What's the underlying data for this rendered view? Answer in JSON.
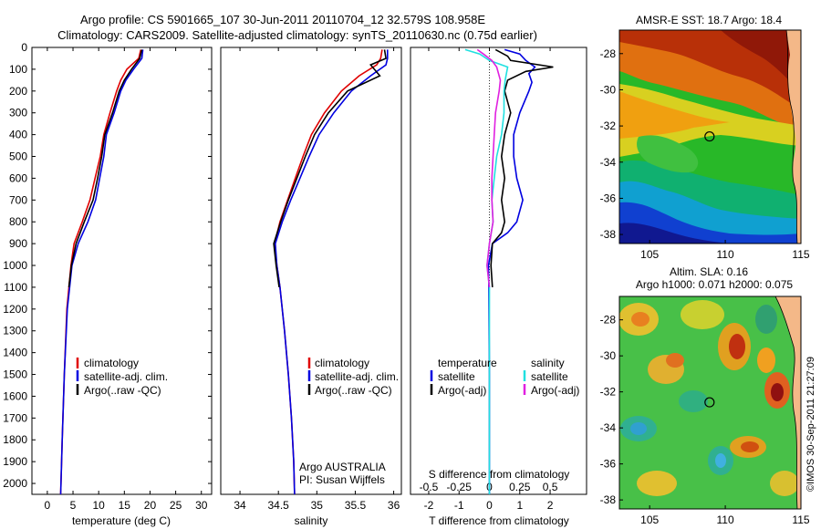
{
  "figure": {
    "title_line1": "Argo profile: CS 5901665_107 30-Jun-2011 20110704_12 32.579S 108.958E",
    "title_line2": "Climatology: CARS2009. Satellite-adjusted climatology: synTS_20110630.nc (0.75d earlier)",
    "side_stamp": "©IMOS 30-Sep-2011 21:27:09"
  },
  "colors": {
    "climatology": "#e00000",
    "satellite": "#0000e0",
    "argo": "#000000",
    "s_satellite": "#20e0e0",
    "s_argo": "#e020e0"
  },
  "chart_data": [
    {
      "type": "line",
      "xlabel": "temperature (deg C)",
      "ylabel": "",
      "xlim": [
        -3,
        32
      ],
      "ylim": [
        2050,
        0
      ],
      "xticks": [
        "0",
        "5",
        "10",
        "15",
        "20",
        "25",
        "30"
      ],
      "yticks": [
        "0",
        "100",
        "200",
        "300",
        "400",
        "500",
        "600",
        "700",
        "800",
        "900",
        "1000",
        "1100",
        "1200",
        "1300",
        "1400",
        "1500",
        "1600",
        "1700",
        "1800",
        "1900",
        "2000"
      ],
      "legend": [
        "climatology",
        "satellite-adj. clim.",
        "Argo(..raw -QC)"
      ],
      "series": [
        {
          "name": "climatology",
          "color_key": "climatology",
          "depth": [
            10,
            50,
            100,
            150,
            200,
            300,
            400,
            500,
            600,
            700,
            800,
            900,
            1000,
            1200,
            1500,
            1800,
            2050
          ],
          "values": [
            18.2,
            17.8,
            15.5,
            14.3,
            13.5,
            12.2,
            11.0,
            10.3,
            9.3,
            8.3,
            6.8,
            5.2,
            4.6,
            3.8,
            3.3,
            2.9,
            2.6
          ]
        },
        {
          "name": "satellite-adj. clim.",
          "color_key": "satellite",
          "depth": [
            10,
            50,
            100,
            150,
            200,
            300,
            400,
            500,
            600,
            700,
            800,
            900,
            1000,
            1200,
            1500,
            1800,
            2050
          ],
          "values": [
            18.6,
            18.4,
            16.8,
            15.3,
            14.3,
            13.0,
            11.5,
            11.0,
            10.2,
            9.4,
            7.9,
            6.0,
            4.8,
            3.9,
            3.3,
            2.9,
            2.6
          ]
        },
        {
          "name": "Argo(..raw -QC)",
          "color_key": "argo",
          "depth": [
            10,
            50,
            100,
            150,
            200,
            300,
            400,
            500,
            600,
            700,
            800,
            900,
            1000,
            1100
          ],
          "values": [
            18.4,
            18.0,
            16.4,
            15.0,
            14.0,
            12.7,
            11.2,
            10.6,
            9.8,
            8.9,
            7.2,
            5.6,
            4.7,
            4.2
          ]
        }
      ]
    },
    {
      "type": "line",
      "xlabel": "salinity",
      "ylabel": "",
      "xlim": [
        33.75,
        36.1
      ],
      "ylim": [
        2050,
        0
      ],
      "xticks": [
        "34",
        "34.5",
        "35",
        "35.5",
        "36"
      ],
      "legend": [
        "climatology",
        "satellite-adj. clim.",
        "Argo(..raw -QC)"
      ],
      "annotation_line1": "Argo AUSTRALIA",
      "annotation_line2": "PI: Susan Wijffels",
      "series": [
        {
          "name": "climatology",
          "color_key": "climatology",
          "depth": [
            10,
            50,
            80,
            130,
            200,
            300,
            400,
            500,
            600,
            700,
            800,
            900,
            1000,
            1100,
            1300,
            1500,
            1700,
            1900,
            2050
          ],
          "values": [
            35.85,
            35.83,
            35.78,
            35.55,
            35.32,
            35.1,
            34.93,
            34.82,
            34.72,
            34.62,
            34.52,
            34.45,
            34.48,
            34.52,
            34.58,
            34.63,
            34.67,
            34.7,
            34.71
          ]
        },
        {
          "name": "satellite-adj. clim.",
          "color_key": "satellite",
          "depth": [
            10,
            50,
            80,
            130,
            200,
            300,
            400,
            500,
            600,
            700,
            800,
            900,
            1000,
            1100,
            1300,
            1500,
            1700,
            1900,
            2050
          ],
          "values": [
            35.92,
            35.92,
            35.9,
            35.7,
            35.45,
            35.22,
            35.03,
            34.9,
            34.78,
            34.66,
            34.55,
            34.46,
            34.48,
            34.52,
            34.58,
            34.63,
            34.67,
            34.7,
            34.71
          ]
        },
        {
          "name": "Argo(..raw -QC)",
          "color_key": "argo",
          "depth": [
            10,
            50,
            80,
            130,
            200,
            300,
            400,
            500,
            600,
            700,
            800,
            900,
            1000,
            1100
          ],
          "values": [
            35.88,
            35.9,
            35.7,
            35.82,
            35.4,
            35.15,
            34.97,
            34.85,
            34.74,
            34.63,
            34.53,
            34.44,
            34.47,
            34.51
          ]
        }
      ]
    },
    {
      "type": "line",
      "xlabel": "T difference from climatology",
      "top_axis_label": "S difference from climatology",
      "xlim": [
        -2.6,
        3.2
      ],
      "top_xlim": [
        -0.65,
        0.8
      ],
      "ylim": [
        2050,
        0
      ],
      "xticks": [
        "-2",
        "-1",
        "0",
        "1",
        "2"
      ],
      "top_xticks": [
        "-0.5",
        "-0.25",
        "0",
        "0.25",
        "0.5"
      ],
      "legend_heading_t": "temperature",
      "legend_heading_s": "salinity",
      "legend_t": [
        "satellite",
        "Argo(-adj)"
      ],
      "legend_s": [
        "satellite",
        "Argo(-adj)"
      ],
      "series": [
        {
          "name": "satellite",
          "color_key": "satellite",
          "axis": "T",
          "depth": [
            10,
            30,
            60,
            90,
            120,
            160,
            200,
            300,
            400,
            500,
            600,
            700,
            800,
            850,
            900,
            1000,
            1100,
            1500,
            2050
          ],
          "values": [
            0.5,
            1.0,
            1.2,
            1.5,
            1.3,
            1.4,
            1.3,
            1.0,
            0.8,
            0.8,
            0.9,
            1.1,
            0.9,
            0.6,
            0.1,
            -0.03,
            -0.02,
            0.0,
            0.0
          ]
        },
        {
          "name": "Argo(-adj)",
          "color_key": "argo",
          "axis": "T",
          "depth": [
            10,
            40,
            60,
            90,
            110,
            150,
            200,
            300,
            400,
            500,
            600,
            700,
            800,
            850,
            900,
            1000,
            1100
          ],
          "values": [
            0.2,
            0.6,
            0.7,
            2.1,
            1.2,
            0.6,
            0.5,
            0.7,
            0.5,
            0.4,
            0.5,
            0.4,
            0.5,
            0.4,
            0.1,
            0.05,
            0.1
          ]
        },
        {
          "name": "satellite",
          "color_key": "s_satellite",
          "axis": "S",
          "depth": [
            10,
            30,
            60,
            90,
            150,
            200,
            300,
            400,
            500,
            600,
            700,
            800,
            900,
            1000,
            1100,
            1500,
            2050
          ],
          "values": [
            -0.2,
            -0.08,
            0.0,
            0.15,
            0.13,
            0.12,
            0.12,
            0.1,
            0.06,
            0.04,
            0.02,
            0.03,
            0.0,
            -0.02,
            0.0,
            0.0,
            0.0
          ]
        },
        {
          "name": "Argo(-adj)",
          "color_key": "s_argo",
          "axis": "S",
          "depth": [
            10,
            30,
            60,
            90,
            150,
            200,
            300,
            400,
            500,
            600,
            700,
            800,
            900,
            1000,
            1100
          ],
          "values": [
            -0.1,
            -0.05,
            0.02,
            0.06,
            0.09,
            0.08,
            0.05,
            0.04,
            0.03,
            0.02,
            0.02,
            0.03,
            0.0,
            -0.02,
            0.0
          ]
        }
      ]
    },
    {
      "type": "heatmap",
      "title": "AMSR-E SST: 18.7 Argo: 18.4",
      "xlim": [
        103,
        115
      ],
      "ylim": [
        -38.5,
        -26.7
      ],
      "xticks": [
        "105",
        "110",
        "115"
      ],
      "yticks": [
        "-28",
        "-30",
        "-32",
        "-34",
        "-36",
        "-38"
      ],
      "marker": {
        "lon": 108.958,
        "lat": -32.579
      }
    },
    {
      "type": "heatmap",
      "title_line1": "Altim. SLA: 0.16",
      "title_line2": "Argo h1000: 0.071 h2000: 0.075",
      "xlim": [
        103,
        115
      ],
      "ylim": [
        -38.5,
        -26.7
      ],
      "xticks": [
        "105",
        "110",
        "115"
      ],
      "yticks": [
        "-28",
        "-30",
        "-32",
        "-34",
        "-36",
        "-38"
      ],
      "marker": {
        "lon": 108.958,
        "lat": -32.579
      }
    }
  ]
}
